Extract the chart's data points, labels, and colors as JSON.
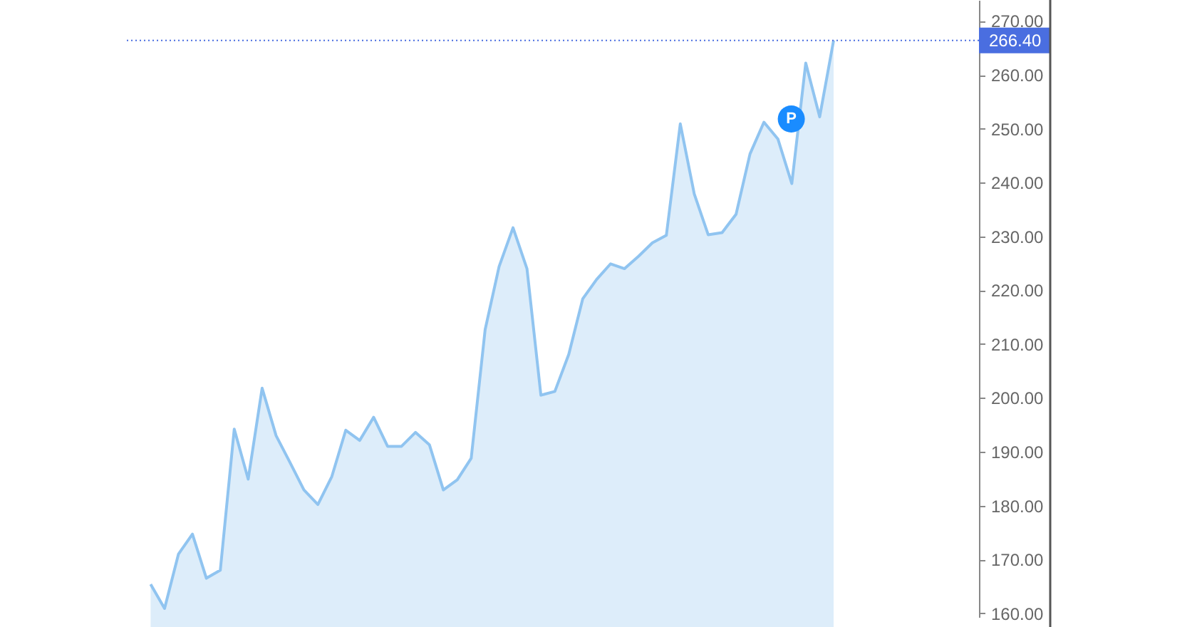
{
  "chart_data": {
    "type": "area",
    "categories": [
      null,
      null,
      null,
      null,
      null,
      null,
      null,
      null,
      null,
      null,
      null,
      null,
      null,
      null,
      null,
      null,
      null,
      null,
      null,
      null,
      null,
      null,
      null,
      null,
      null,
      null,
      null,
      null,
      null,
      null,
      null,
      null,
      null,
      null,
      null,
      null,
      null,
      null,
      null,
      null,
      null,
      null,
      null,
      null,
      null,
      null,
      null,
      null,
      null,
      null
    ],
    "series": [
      {
        "color": "#90c4f0",
        "values": [
          165.4,
          160.9,
          171.0,
          174.7,
          166.5,
          168.0,
          194.2,
          184.9,
          201.8,
          193.0,
          188.0,
          182.9,
          180.2,
          185.4,
          194.0,
          192.1,
          196.4,
          191.0,
          191.0,
          193.6,
          191.3,
          182.9,
          184.8,
          188.8,
          212.7,
          224.4,
          231.6,
          224.0,
          200.5,
          201.2,
          208.1,
          218.4,
          222.0,
          224.9,
          224.0,
          226.3,
          228.8,
          230.2,
          250.9,
          237.9,
          230.3,
          230.7,
          234.1,
          245.3,
          251.2,
          248.1,
          239.8,
          262.2,
          252.2,
          266.4
        ]
      }
    ],
    "ylim": [
      159.3,
      273.9
    ],
    "yticks": [
      {
        "value": 160,
        "label": "160.00"
      },
      {
        "value": 170,
        "label": "170.00"
      },
      {
        "value": 180,
        "label": "180.00"
      },
      {
        "value": 190,
        "label": "190.00"
      },
      {
        "value": 200,
        "label": "200.00"
      },
      {
        "value": 210,
        "label": "210.00"
      },
      {
        "value": 220,
        "label": "220.00"
      },
      {
        "value": 230,
        "label": "230.00"
      },
      {
        "value": 240,
        "label": "240.00"
      },
      {
        "value": 250,
        "label": "250.00"
      },
      {
        "value": 260,
        "label": "260.00"
      },
      {
        "value": 270,
        "label": "270.00"
      }
    ],
    "ref_lines": [
      {
        "axis": "y",
        "value": 266.4,
        "label": "266.40",
        "color": "#4a6ee0",
        "line_style": "dotted"
      }
    ],
    "annotations": [
      {
        "text": "P",
        "y": 251.8
      }
    ],
    "grid": false
  }
}
